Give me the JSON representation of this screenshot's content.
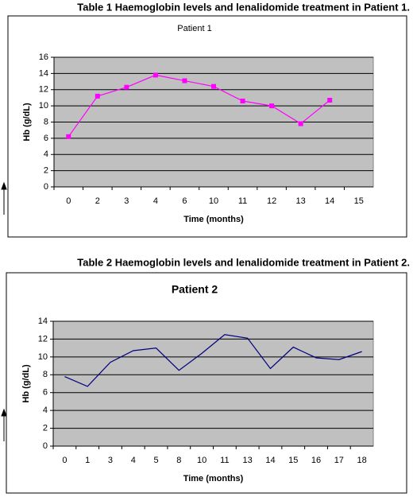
{
  "chart_data": [
    {
      "type": "line",
      "caption": "Table 1 Haemoglobin levels and lenalidomide treatment in Patient 1.",
      "title": "Patient 1",
      "x_label": "Time (months)",
      "y_label": "Hb (g/dL)",
      "categories": [
        "0",
        "2",
        "3",
        "4",
        "6",
        "10",
        "11",
        "12",
        "13",
        "14",
        "15"
      ],
      "series": [
        {
          "name": "Patient 1",
          "color": "#ff00ff",
          "values": [
            6.2,
            11.2,
            12.3,
            13.8,
            13.1,
            12.4,
            10.6,
            10.0,
            7.8,
            10.7,
            null
          ]
        }
      ],
      "markers": true,
      "ylim": [
        0,
        16
      ],
      "yticks": [
        0,
        2,
        4,
        6,
        8,
        10,
        12,
        14,
        16
      ],
      "grid": true
    },
    {
      "type": "line",
      "caption": "Table 2 Haemoglobin levels and lenalidomide treatment in Patient 2.",
      "title": "Patient 2",
      "x_label": "Time (months)",
      "y_label": "Hb (g/dL)",
      "categories": [
        "0",
        "1",
        "3",
        "4",
        "5",
        "8",
        "10",
        "11",
        "13",
        "14",
        "15",
        "16",
        "17",
        "18"
      ],
      "series": [
        {
          "name": "Patient 2",
          "color": "#000080",
          "values": [
            7.8,
            6.7,
            9.4,
            10.7,
            11.0,
            8.5,
            10.4,
            12.5,
            12.1,
            8.7,
            11.1,
            9.9,
            9.7,
            10.6
          ]
        }
      ],
      "markers": false,
      "ylim": [
        0,
        14
      ],
      "yticks": [
        0,
        2,
        4,
        6,
        8,
        10,
        12,
        14
      ],
      "grid": true
    }
  ]
}
